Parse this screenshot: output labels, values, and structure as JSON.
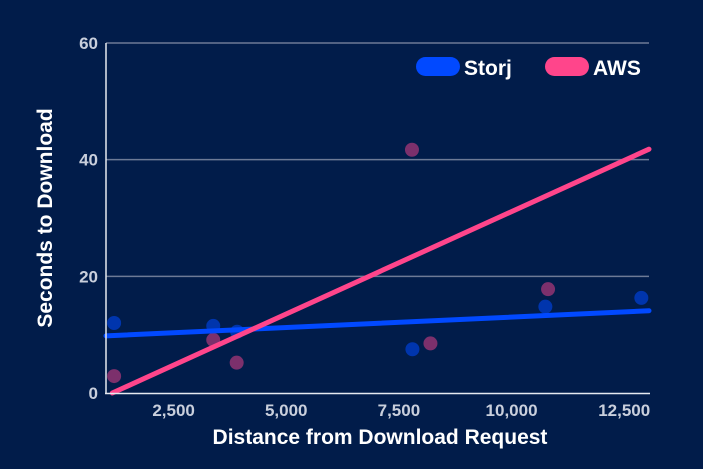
{
  "chart_data": {
    "type": "scatter",
    "title": "",
    "xlabel": "Distance from Download Request",
    "ylabel": "Seconds to Download",
    "xlim": [
      1000,
      13050
    ],
    "ylim": [
      0,
      60
    ],
    "x_ticks": [
      2500,
      5000,
      7500,
      10000,
      12500
    ],
    "x_tick_labels": [
      "2,500",
      "5,000",
      "7,500",
      "10,000",
      "12,500"
    ],
    "y_ticks": [
      0,
      20,
      40,
      60
    ],
    "y_tick_labels": [
      "0",
      "20",
      "40",
      "60"
    ],
    "grid": "horizontal",
    "legend_position": "top-right",
    "series": [
      {
        "name": "Storj",
        "color": "#0149ff",
        "points": [
          [
            1180,
            12.0
          ],
          [
            3380,
            11.5
          ],
          [
            3910,
            10.5
          ],
          [
            7800,
            7.5
          ],
          [
            10750,
            14.8
          ],
          [
            12880,
            16.3
          ]
        ],
        "trendline": [
          [
            1000,
            9.8
          ],
          [
            13050,
            14.1
          ]
        ]
      },
      {
        "name": "AWS",
        "color": "#ff458b",
        "points": [
          [
            1180,
            2.9
          ],
          [
            3380,
            9.1
          ],
          [
            3900,
            5.2
          ],
          [
            7790,
            41.7
          ],
          [
            8200,
            8.5
          ],
          [
            10810,
            17.8
          ]
        ],
        "trendline": [
          [
            1140,
            0
          ],
          [
            13050,
            41.8
          ]
        ]
      }
    ]
  }
}
